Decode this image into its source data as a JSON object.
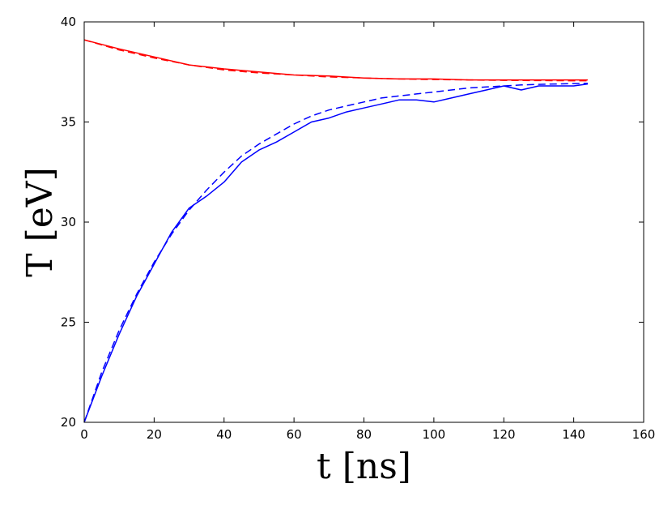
{
  "chart_data": {
    "type": "line",
    "xlabel": "t [ns]",
    "ylabel": "T [eV]",
    "xlim": [
      0,
      160
    ],
    "ylim": [
      20,
      40
    ],
    "xticks": [
      0,
      20,
      40,
      60,
      80,
      100,
      120,
      140,
      160
    ],
    "yticks": [
      20,
      25,
      30,
      35,
      40
    ],
    "grid": false,
    "series": [
      {
        "color": "#ff0000",
        "style": "solid",
        "x": [
          0,
          10,
          20,
          30,
          40,
          50,
          60,
          70,
          80,
          90,
          100,
          110,
          120,
          130,
          140,
          144
        ],
        "y": [
          39.1,
          38.65,
          38.25,
          37.85,
          37.65,
          37.5,
          37.35,
          37.3,
          37.2,
          37.15,
          37.15,
          37.1,
          37.1,
          37.1,
          37.1,
          37.1
        ]
      },
      {
        "color": "#ff0000",
        "style": "dashed",
        "x": [
          0,
          10,
          20,
          30,
          40,
          50,
          60,
          70,
          80,
          90,
          100,
          110,
          120,
          130,
          140,
          144
        ],
        "y": [
          39.1,
          38.6,
          38.2,
          37.85,
          37.6,
          37.45,
          37.35,
          37.25,
          37.2,
          37.15,
          37.12,
          37.1,
          37.08,
          37.07,
          37.06,
          37.06
        ]
      },
      {
        "color": "#0000ff",
        "style": "solid",
        "x": [
          0,
          5,
          10,
          15,
          20,
          25,
          30,
          35,
          40,
          45,
          50,
          55,
          60,
          65,
          70,
          75,
          80,
          85,
          90,
          95,
          100,
          105,
          110,
          115,
          120,
          125,
          130,
          135,
          140,
          144
        ],
        "y": [
          20.0,
          22.3,
          24.4,
          26.3,
          27.9,
          29.5,
          30.7,
          31.3,
          32.0,
          33.0,
          33.6,
          34.0,
          34.5,
          35.0,
          35.2,
          35.5,
          35.7,
          35.9,
          36.1,
          36.1,
          36.0,
          36.2,
          36.4,
          36.6,
          36.8,
          36.6,
          36.8,
          36.8,
          36.8,
          36.9
        ]
      },
      {
        "color": "#0000ff",
        "style": "dashed",
        "x": [
          0,
          5,
          10,
          15,
          20,
          25,
          30,
          35,
          40,
          45,
          50,
          55,
          60,
          65,
          70,
          75,
          80,
          85,
          90,
          95,
          100,
          105,
          110,
          115,
          120,
          125,
          130,
          135,
          140,
          144
        ],
        "y": [
          20.0,
          22.5,
          24.6,
          26.4,
          28.0,
          29.4,
          30.6,
          31.6,
          32.5,
          33.3,
          33.9,
          34.4,
          34.9,
          35.3,
          35.6,
          35.8,
          36.0,
          36.2,
          36.3,
          36.4,
          36.5,
          36.6,
          36.7,
          36.75,
          36.8,
          36.85,
          36.88,
          36.9,
          36.92,
          36.93
        ]
      }
    ]
  }
}
